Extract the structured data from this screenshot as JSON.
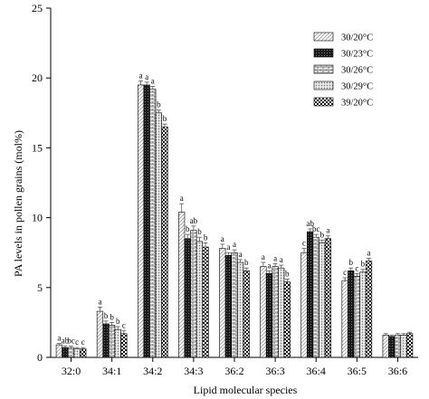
{
  "chart_data": {
    "type": "bar",
    "xlabel": "Lipid molecular species",
    "ylabel": "PA levels in pollen grains (mol%)",
    "ylim": [
      0,
      25
    ],
    "yticks": [
      0,
      5,
      10,
      15,
      20,
      25
    ],
    "grid": false,
    "legend_position": "top-right",
    "categories": [
      "32:0",
      "34:1",
      "34:2",
      "34:3",
      "36:2",
      "36:3",
      "36:4",
      "36:5",
      "36:6"
    ],
    "series": [
      {
        "name": "30/20°C",
        "pattern": "diag-light",
        "values": [
          0.9,
          3.3,
          19.5,
          10.4,
          7.8,
          6.5,
          7.5,
          5.5,
          1.6
        ],
        "errors": [
          0.1,
          0.3,
          0.3,
          0.6,
          0.3,
          0.3,
          0.3,
          0.2,
          0.1
        ]
      },
      {
        "name": "30/23°C",
        "pattern": "dense-dark",
        "values": [
          0.7,
          2.4,
          19.5,
          8.5,
          7.3,
          6.0,
          9.0,
          6.2,
          1.5
        ],
        "errors": [
          0.1,
          0.2,
          0.2,
          0.3,
          0.2,
          0.2,
          0.2,
          0.2,
          0.1
        ]
      },
      {
        "name": "30/26°C",
        "pattern": "brick",
        "values": [
          0.7,
          2.3,
          19.2,
          9.1,
          7.5,
          6.5,
          8.6,
          5.8,
          1.6
        ],
        "errors": [
          0.1,
          0.2,
          0.2,
          0.3,
          0.2,
          0.2,
          0.2,
          0.2,
          0.1
        ]
      },
      {
        "name": "30/29°C",
        "pattern": "dots",
        "values": [
          0.6,
          2.0,
          17.5,
          8.3,
          6.8,
          6.4,
          8.2,
          6.1,
          1.6
        ],
        "errors": [
          0.1,
          0.2,
          0.2,
          0.3,
          0.2,
          0.2,
          0.2,
          0.2,
          0.1
        ]
      },
      {
        "name": "39/20°C",
        "pattern": "check",
        "values": [
          0.6,
          1.7,
          16.5,
          7.9,
          6.2,
          5.4,
          8.5,
          6.9,
          1.7
        ],
        "errors": [
          0.1,
          0.2,
          0.2,
          0.3,
          0.2,
          0.2,
          0.2,
          0.2,
          0.1
        ]
      }
    ],
    "significance_labels": [
      [
        "a",
        "ab",
        "bc",
        "c",
        "c"
      ],
      [
        "a",
        "b",
        "b",
        "b",
        "c"
      ],
      [
        "a",
        "a",
        "a",
        "b",
        "b"
      ],
      [
        "a",
        "b",
        "ab",
        "b",
        "b"
      ],
      [
        "a",
        "a",
        "a",
        "a",
        "b"
      ],
      [
        "a",
        "a",
        "a",
        "a",
        "b"
      ],
      [
        "c",
        "ab",
        "bc",
        "b",
        "a"
      ],
      [
        "c",
        "b",
        "c",
        "b",
        "a"
      ],
      [
        "",
        "",
        "",
        "",
        ""
      ]
    ]
  }
}
